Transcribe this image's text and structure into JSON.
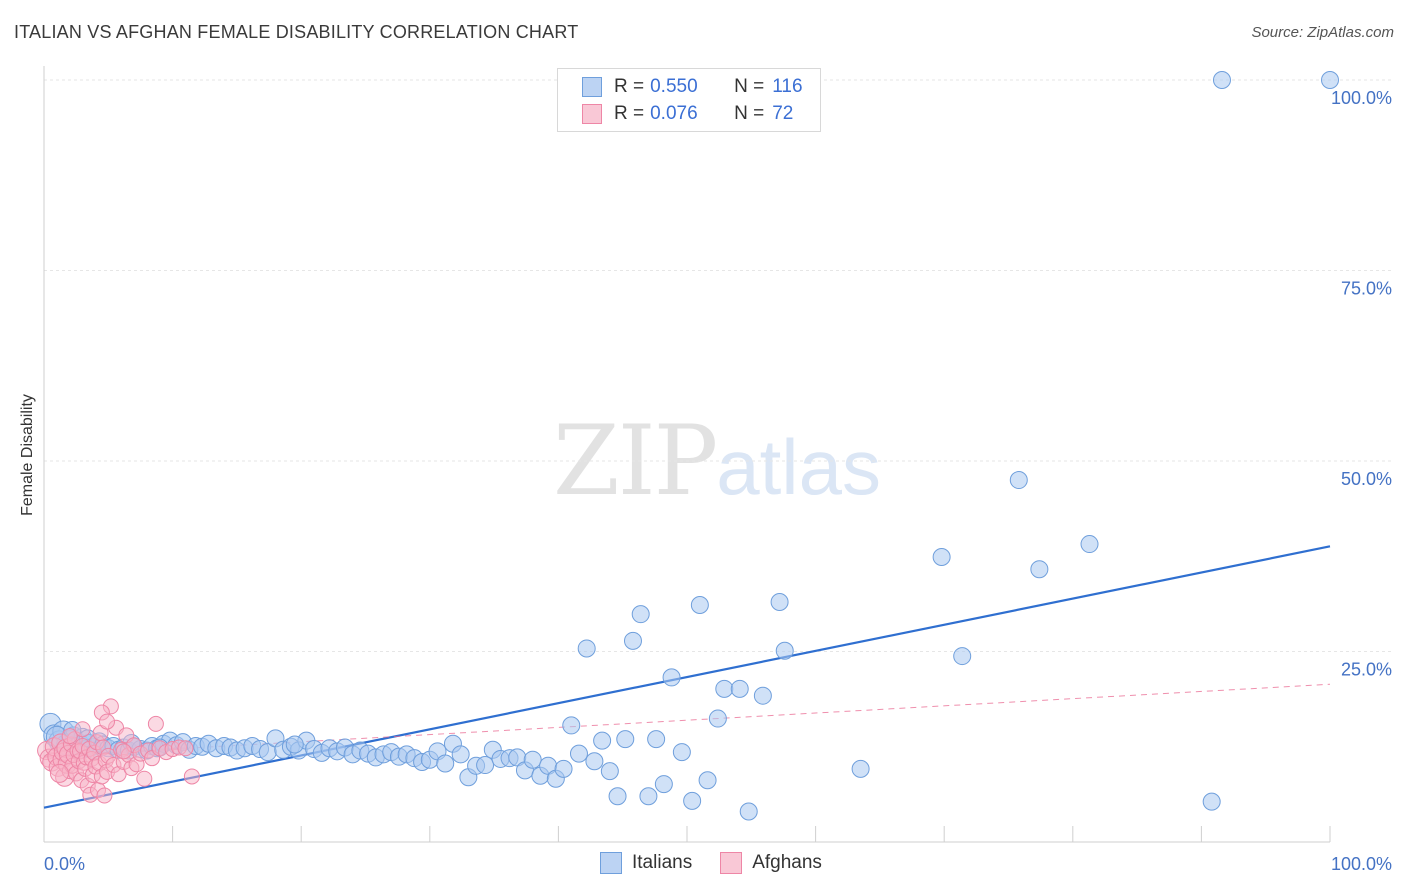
{
  "header": {
    "title": "ITALIAN VS AFGHAN FEMALE DISABILITY CORRELATION CHART",
    "source": "Source: ZipAtlas.com"
  },
  "watermark": {
    "zip": "ZIP",
    "atlas": "atlas"
  },
  "legend_top": {
    "rows": [
      {
        "r_label": "R =",
        "r_value": "0.550",
        "n_label": "N =",
        "n_value": "116"
      },
      {
        "r_label": "R =",
        "r_value": "0.076",
        "n_label": "N =",
        "n_value": "72"
      }
    ]
  },
  "legend_bottom": {
    "italians": "Italians",
    "afghans": "Afghans"
  },
  "colors": {
    "italians_fill": "#a9c8f0",
    "italians_stroke": "#6f9fdc",
    "italians_line": "#2f6fd0",
    "afghans_fill": "#f7b4c8",
    "afghans_stroke": "#ee86a6",
    "afghans_line": "#e8608a",
    "grid": "#e6e6e6"
  },
  "chart_data": {
    "type": "scatter",
    "title": "ITALIAN VS AFGHAN FEMALE DISABILITY CORRELATION CHART",
    "xlabel": "",
    "ylabel": "Female Disability",
    "xlim": [
      0,
      100
    ],
    "ylim": [
      0,
      100
    ],
    "x_tick_labels": [
      "0.0%",
      "100.0%"
    ],
    "y_tick_labels": [
      {
        "value": 25,
        "label": "25.0%"
      },
      {
        "value": 50,
        "label": "50.0%"
      },
      {
        "value": 75,
        "label": "75.0%"
      },
      {
        "value": 100,
        "label": "100.0%"
      }
    ],
    "grid": true,
    "legend_placement": "top-center",
    "series": [
      {
        "name": "Italians",
        "r": 0.55,
        "n": 116,
        "trend": {
          "x": [
            0,
            100
          ],
          "y": [
            4.5,
            38.8
          ]
        },
        "points": [
          [
            0.5,
            15.5
          ],
          [
            0.8,
            14.0
          ],
          [
            1.2,
            13.2
          ],
          [
            1.5,
            14.5
          ],
          [
            1.8,
            12.8
          ],
          [
            2.0,
            13.5
          ],
          [
            2.3,
            14.0
          ],
          [
            2.5,
            12.5
          ],
          [
            2.8,
            13.0
          ],
          [
            3.0,
            13.8
          ],
          [
            3.2,
            12.2
          ],
          [
            3.5,
            13.0
          ],
          [
            3.8,
            12.5
          ],
          [
            4.0,
            12.0
          ],
          [
            4.3,
            13.2
          ],
          [
            4.6,
            12.8
          ],
          [
            5.0,
            12.3
          ],
          [
            5.4,
            12.6
          ],
          [
            5.8,
            12.1
          ],
          [
            6.2,
            12.4
          ],
          [
            6.6,
            12.0
          ],
          [
            7.0,
            12.5
          ],
          [
            7.5,
            12.2
          ],
          [
            8.0,
            12.0
          ],
          [
            8.4,
            12.6
          ],
          [
            8.8,
            12.3
          ],
          [
            9.3,
            12.9
          ],
          [
            9.8,
            13.3
          ],
          [
            10.3,
            12.7
          ],
          [
            10.8,
            13.1
          ],
          [
            11.3,
            12.1
          ],
          [
            11.8,
            12.6
          ],
          [
            12.3,
            12.5
          ],
          [
            12.8,
            12.9
          ],
          [
            13.4,
            12.3
          ],
          [
            14.0,
            12.6
          ],
          [
            14.5,
            12.4
          ],
          [
            15.0,
            12.0
          ],
          [
            15.6,
            12.3
          ],
          [
            16.2,
            12.6
          ],
          [
            16.8,
            12.2
          ],
          [
            17.4,
            11.8
          ],
          [
            18.0,
            13.6
          ],
          [
            18.6,
            12.1
          ],
          [
            19.2,
            12.5
          ],
          [
            19.8,
            12.0
          ],
          [
            20.4,
            13.3
          ],
          [
            21.0,
            12.2
          ],
          [
            21.6,
            11.7
          ],
          [
            22.2,
            12.3
          ],
          [
            22.8,
            11.9
          ],
          [
            23.4,
            12.4
          ],
          [
            24.0,
            11.5
          ],
          [
            24.6,
            12.0
          ],
          [
            25.2,
            11.6
          ],
          [
            25.8,
            11.1
          ],
          [
            26.4,
            11.5
          ],
          [
            27.0,
            11.8
          ],
          [
            27.6,
            11.2
          ],
          [
            28.2,
            11.5
          ],
          [
            28.8,
            11.0
          ],
          [
            29.4,
            10.5
          ],
          [
            30.0,
            10.8
          ],
          [
            30.6,
            11.9
          ],
          [
            31.2,
            10.3
          ],
          [
            31.8,
            12.9
          ],
          [
            32.4,
            11.5
          ],
          [
            33.0,
            8.5
          ],
          [
            33.6,
            10.0
          ],
          [
            34.3,
            10.1
          ],
          [
            34.9,
            12.1
          ],
          [
            35.5,
            10.9
          ],
          [
            36.2,
            11.0
          ],
          [
            36.8,
            11.1
          ],
          [
            37.4,
            9.4
          ],
          [
            38.0,
            10.8
          ],
          [
            38.6,
            8.7
          ],
          [
            39.2,
            10.0
          ],
          [
            39.8,
            8.3
          ],
          [
            40.4,
            9.6
          ],
          [
            41.0,
            15.3
          ],
          [
            41.6,
            11.6
          ],
          [
            42.2,
            25.4
          ],
          [
            42.8,
            10.6
          ],
          [
            43.4,
            13.3
          ],
          [
            44.0,
            9.3
          ],
          [
            44.6,
            6.0
          ],
          [
            45.2,
            13.5
          ],
          [
            45.8,
            26.4
          ],
          [
            46.4,
            29.9
          ],
          [
            47.0,
            6.0
          ],
          [
            47.6,
            13.5
          ],
          [
            48.2,
            7.6
          ],
          [
            48.8,
            21.6
          ],
          [
            49.6,
            11.8
          ],
          [
            50.4,
            5.4
          ],
          [
            51.0,
            31.1
          ],
          [
            51.6,
            8.1
          ],
          [
            52.4,
            16.2
          ],
          [
            52.9,
            20.1
          ],
          [
            54.1,
            20.1
          ],
          [
            54.8,
            4.0
          ],
          [
            55.9,
            19.2
          ],
          [
            57.2,
            31.5
          ],
          [
            57.6,
            25.1
          ],
          [
            63.5,
            9.6
          ],
          [
            69.8,
            37.4
          ],
          [
            71.4,
            24.4
          ],
          [
            75.8,
            47.5
          ],
          [
            77.4,
            35.8
          ],
          [
            81.3,
            39.1
          ],
          [
            90.8,
            5.3
          ],
          [
            91.6,
            100.0
          ],
          [
            100.0,
            100.0
          ],
          [
            1.0,
            13.8
          ],
          [
            2.2,
            14.7
          ],
          [
            3.4,
            13.6
          ],
          [
            6.8,
            13.0
          ],
          [
            9.0,
            12.4
          ],
          [
            19.5,
            12.8
          ]
        ]
      },
      {
        "name": "Afghans",
        "r": 0.076,
        "n": 72,
        "trend": {
          "x": [
            0,
            11
          ],
          "y": [
            11.2,
            12.3
          ],
          "dashed_x": [
            11,
            100
          ],
          "dashed_y": [
            12.3,
            20.7
          ]
        },
        "points": [
          [
            0.2,
            12.0
          ],
          [
            0.4,
            11.0
          ],
          [
            0.6,
            10.5
          ],
          [
            0.8,
            12.5
          ],
          [
            1.0,
            11.2
          ],
          [
            1.1,
            9.8
          ],
          [
            1.3,
            13.0
          ],
          [
            1.4,
            10.8
          ],
          [
            1.5,
            11.8
          ],
          [
            1.6,
            8.5
          ],
          [
            1.7,
            12.3
          ],
          [
            1.8,
            10.2
          ],
          [
            1.9,
            11.5
          ],
          [
            2.0,
            9.3
          ],
          [
            2.1,
            12.8
          ],
          [
            2.2,
            10.0
          ],
          [
            2.3,
            11.4
          ],
          [
            2.4,
            13.5
          ],
          [
            2.5,
            9.0
          ],
          [
            2.6,
            12.0
          ],
          [
            2.7,
            10.6
          ],
          [
            2.8,
            11.9
          ],
          [
            2.9,
            8.1
          ],
          [
            3.0,
            12.6
          ],
          [
            3.1,
            10.4
          ],
          [
            3.2,
            9.6
          ],
          [
            3.3,
            11.1
          ],
          [
            3.4,
            7.4
          ],
          [
            3.5,
            12.2
          ],
          [
            3.6,
            6.2
          ],
          [
            3.7,
            10.9
          ],
          [
            3.8,
            8.8
          ],
          [
            3.9,
            11.7
          ],
          [
            4.0,
            9.9
          ],
          [
            4.1,
            13.1
          ],
          [
            4.2,
            6.8
          ],
          [
            4.3,
            10.3
          ],
          [
            4.4,
            14.3
          ],
          [
            4.5,
            8.6
          ],
          [
            4.6,
            12.4
          ],
          [
            4.7,
            6.1
          ],
          [
            4.8,
            10.7
          ],
          [
            4.9,
            9.2
          ],
          [
            5.0,
            11.3
          ],
          [
            5.2,
            17.8
          ],
          [
            5.4,
            10.1
          ],
          [
            5.6,
            15.0
          ],
          [
            5.8,
            8.9
          ],
          [
            6.0,
            12.1
          ],
          [
            6.2,
            10.5
          ],
          [
            6.4,
            14.0
          ],
          [
            6.6,
            11.4
          ],
          [
            6.8,
            9.7
          ],
          [
            7.0,
            12.7
          ],
          [
            7.2,
            10.2
          ],
          [
            7.5,
            11.6
          ],
          [
            7.8,
            8.3
          ],
          [
            8.1,
            12.0
          ],
          [
            8.4,
            11.0
          ],
          [
            8.7,
            15.5
          ],
          [
            9.0,
            12.3
          ],
          [
            9.5,
            11.8
          ],
          [
            10.0,
            12.2
          ],
          [
            10.5,
            12.4
          ],
          [
            11.0,
            12.3
          ],
          [
            11.5,
            8.6
          ],
          [
            4.5,
            17.0
          ],
          [
            4.9,
            15.8
          ],
          [
            1.2,
            9.0
          ],
          [
            2.0,
            13.9
          ],
          [
            3.0,
            14.8
          ],
          [
            6.2,
            11.9
          ]
        ]
      }
    ]
  }
}
